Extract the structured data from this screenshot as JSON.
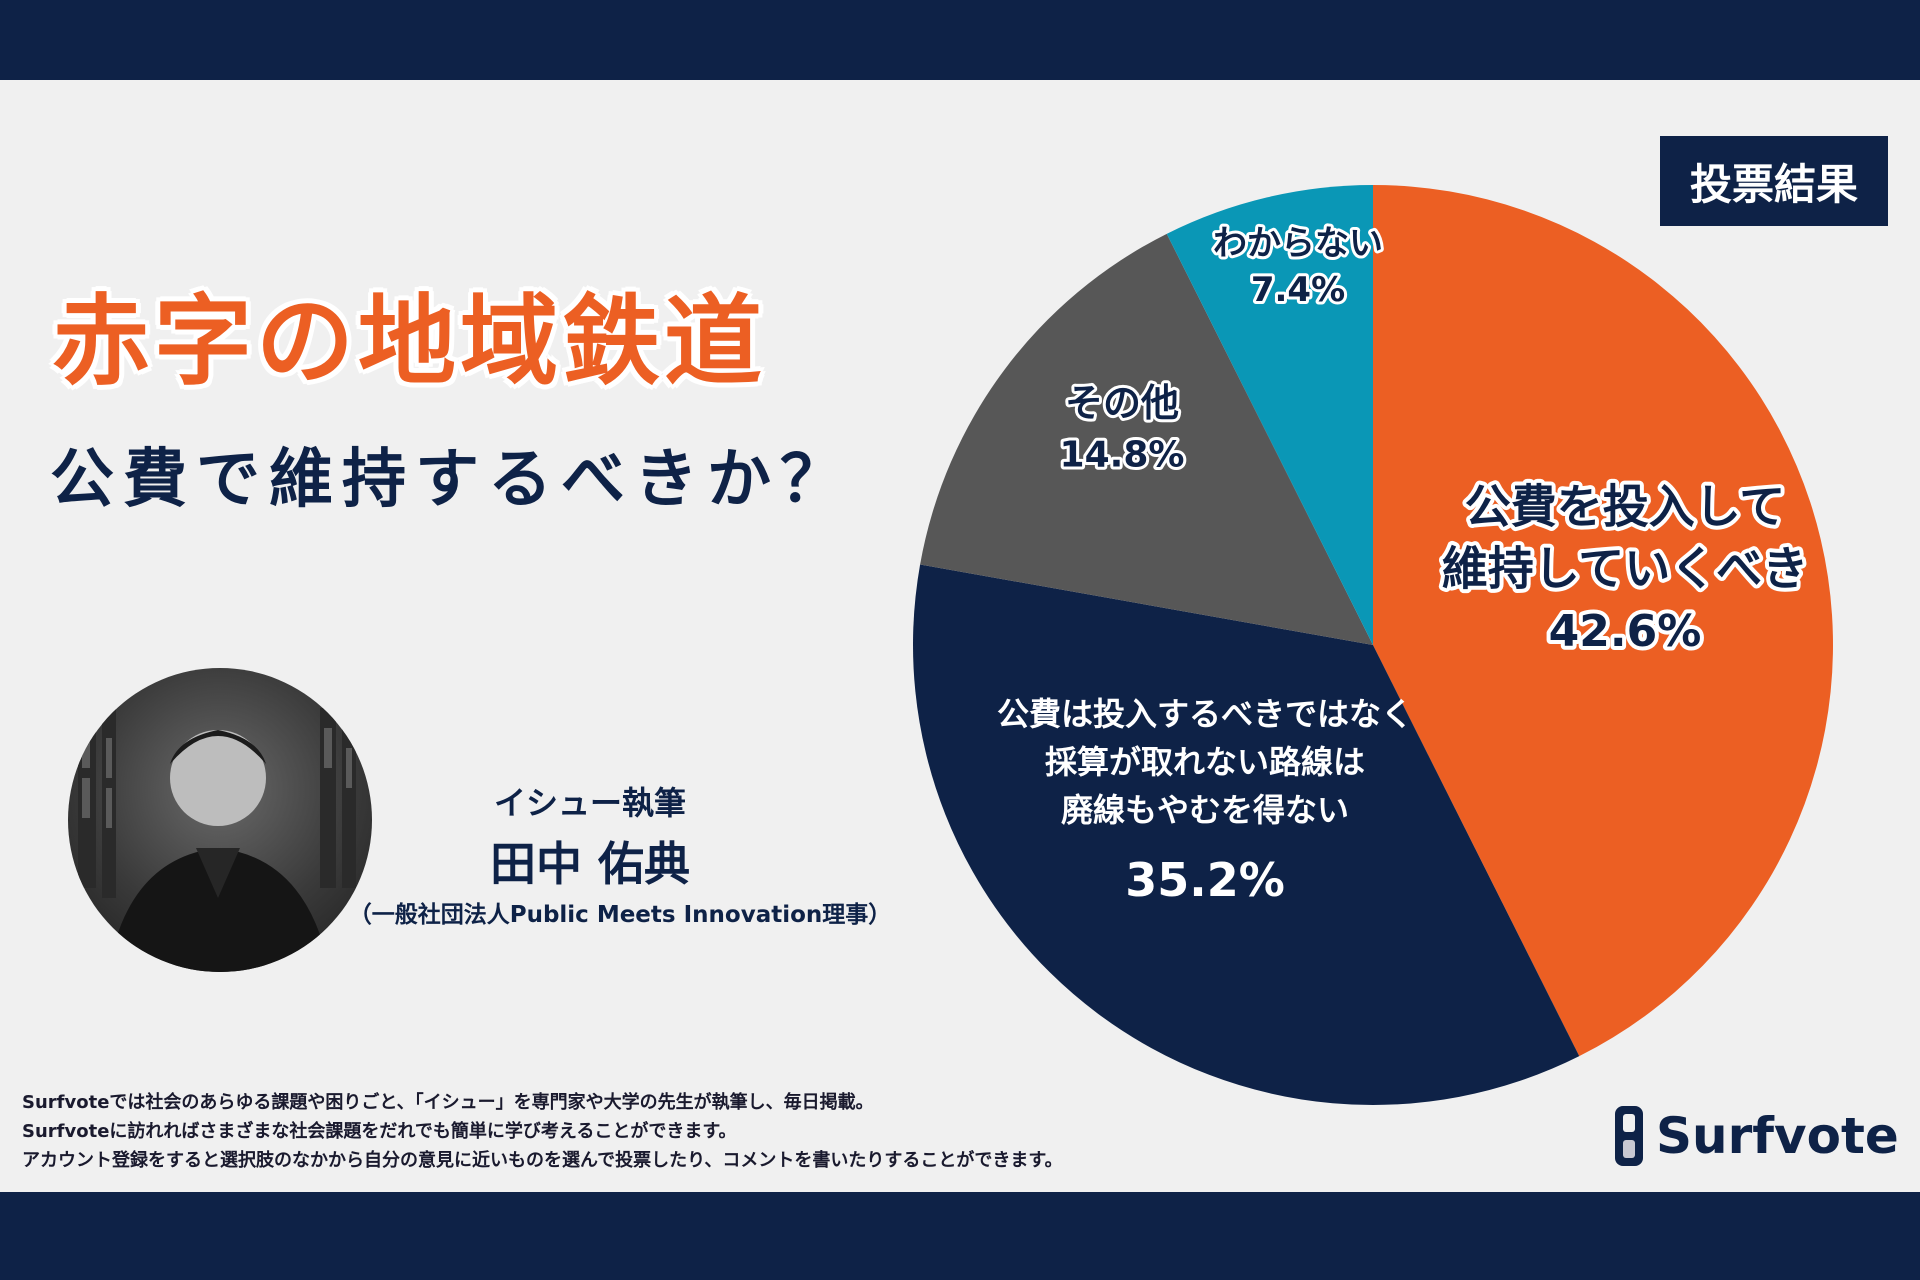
{
  "badge": "投票結果",
  "title": "赤字の地域鉄道",
  "subtitle": "公費で維持するべきか？",
  "author": {
    "role": "イシュー執筆",
    "name": "田中 佑典",
    "org": "（一般社団法人Public Meets Innovation理事）"
  },
  "chart_data": {
    "type": "pie",
    "slices": [
      {
        "label": "公費を投入して維持していくべき",
        "label_lines": [
          "公費を投入して",
          "維持していくべき"
        ],
        "value": 42.6,
        "value_text": "42.6%",
        "color": "#ec5f23"
      },
      {
        "label": "公費は投入するべきではなく採算が取れない路線は廃線もやむを得ない",
        "label_lines": [
          "公費は投入するべきではなく",
          "採算が取れない路線は",
          "廃線もやむを得ない"
        ],
        "value": 35.2,
        "value_text": "35.2%",
        "color": "#0e2247"
      },
      {
        "label": "その他",
        "label_lines": [
          "その他"
        ],
        "value": 14.8,
        "value_text": "14.8%",
        "color": "#575757"
      },
      {
        "label": "わからない",
        "label_lines": [
          "わからない"
        ],
        "value": 7.4,
        "value_text": "7.4%",
        "color": "#0a97b6"
      }
    ]
  },
  "footer": {
    "lines": [
      "Surfvoteでは社会のあらゆる課題や困りごと、「イシュー」を専門家や大学の先生が執筆し、毎日掲載。",
      "Surfvoteに訪れればさまざまな社会課題をだれでも簡単に学び考えることができます。",
      "アカウント登録をすると選択肢のなかから自分の意見に近いものを選んで投票したり、コメントを書いたりすることができます。"
    ]
  },
  "logo": {
    "text": "Surfvote",
    "icon": "surfvote-logo-icon"
  }
}
